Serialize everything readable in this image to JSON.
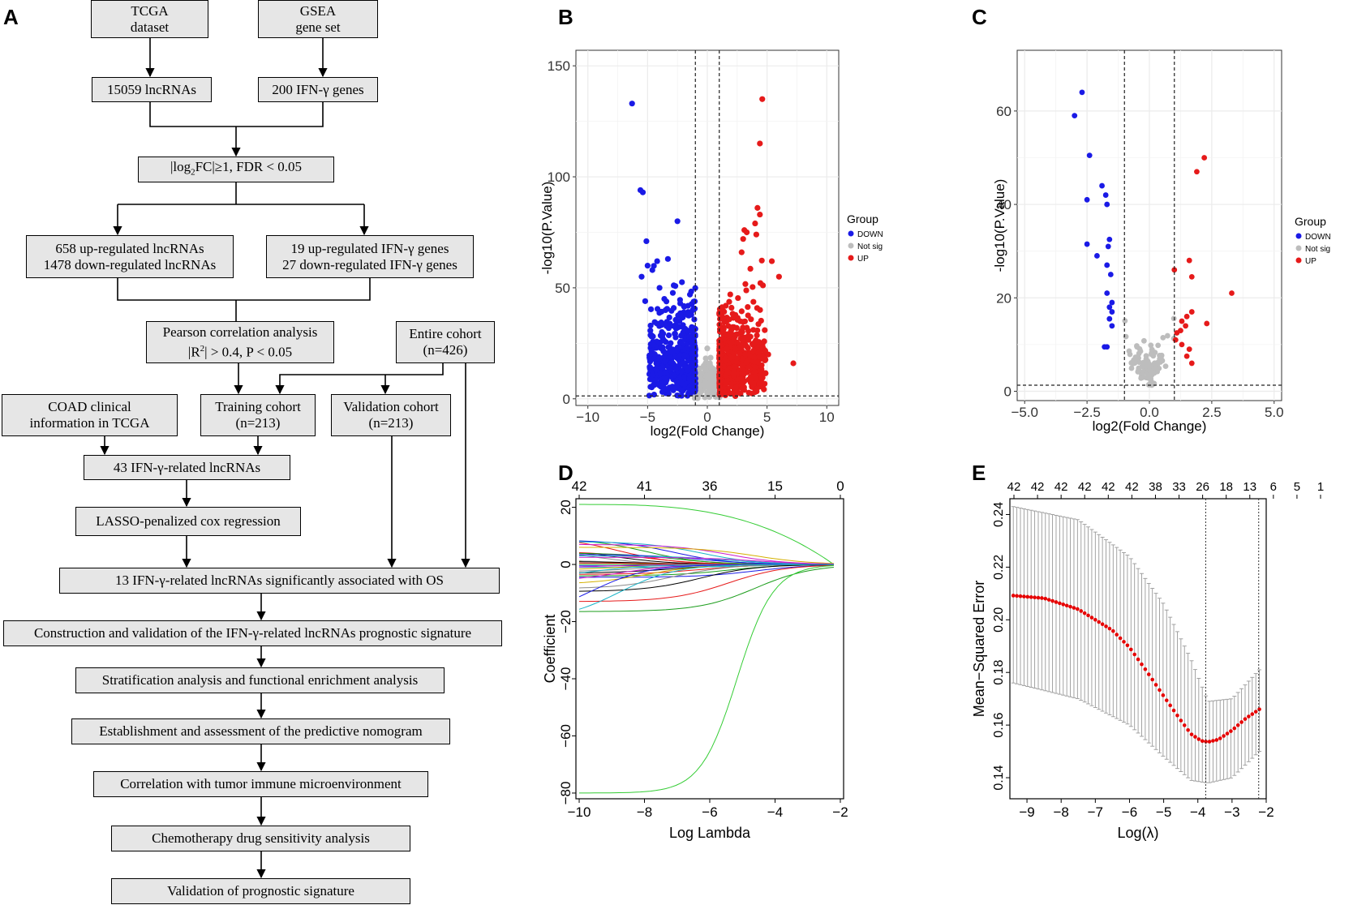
{
  "panels": {
    "A": "A",
    "B": "B",
    "C": "C",
    "D": "D",
    "E": "E"
  },
  "flowchart": {
    "tcga": [
      "TCGA",
      "dataset"
    ],
    "gsea": [
      "GSEA",
      "gene set"
    ],
    "lnc": "15059 lncRNAs",
    "ifn": "200 IFN-γ genes",
    "filter": {
      "pre": "|log",
      "sub": "2",
      "post": "FC|≥1, FDR < 0.05"
    },
    "deg_lnc": [
      "658 up-regulated lncRNAs",
      "1478 down-regulated lncRNAs"
    ],
    "deg_ifn": [
      "19 up-regulated IFN-γ genes",
      "27 down-regulated IFN-γ genes"
    ],
    "pearson": {
      "line1": "Pearson correlation analysis",
      "pre": "|R",
      "sup": "2",
      "post": "| > 0.4, P < 0.05"
    },
    "entire": [
      "Entire cohort",
      "(n=426)"
    ],
    "coad": [
      "COAD clinical",
      "information in TCGA"
    ],
    "training": [
      "Training cohort",
      "(n=213)"
    ],
    "validation": [
      "Validation cohort",
      "(n=213)"
    ],
    "s43": "43 IFN-γ-related lncRNAs",
    "lasso": "LASSO-penalized cox regression",
    "s13": "13 IFN-γ-related lncRNAs significantly associated with OS",
    "construct": "Construction and validation of the IFN-γ-related lncRNAs prognostic signature",
    "strat": "Stratification analysis and functional enrichment analysis",
    "nomo": "Establishment and assessment of the predictive nomogram",
    "immune": "Correlation with tumor immune microenvironment",
    "chemo": "Chemotherapy drug sensitivity analysis",
    "valid": "Validation of prognostic signature"
  },
  "colors": {
    "down": "#1a1ae6",
    "notsig": "#bdbdbd",
    "up": "#e61a1a",
    "box": "#e6e6e6",
    "grid": "#ebebeb"
  },
  "chart_data": [
    {
      "id": "B",
      "type": "scatter",
      "title": "",
      "xlabel": "log2(Fold Change)",
      "ylabel": "-log10(P.Value)",
      "xlim": [
        -11,
        11
      ],
      "ylim": [
        -3,
        157
      ],
      "xticks": [
        -10,
        -5,
        0,
        5,
        10
      ],
      "yticks": [
        0,
        50,
        100,
        150
      ],
      "thresholds": {
        "x": [
          -1,
          1
        ],
        "y": 1.3
      },
      "legend": {
        "title": "Group",
        "entries": [
          "DOWN",
          "Not sig",
          "UP"
        ],
        "position": "right"
      },
      "labeled_points": {
        "down": [
          [
            -6.3,
            133
          ],
          [
            -5.6,
            94
          ],
          [
            -5.4,
            93
          ],
          [
            -5.1,
            71
          ],
          [
            -2.5,
            80
          ],
          [
            -5.5,
            55
          ],
          [
            -5.0,
            60
          ],
          [
            -4.6,
            58
          ],
          [
            -4.2,
            62
          ],
          [
            -3.3,
            63
          ],
          [
            -4.0,
            50
          ],
          [
            -3.6,
            45
          ],
          [
            -5.2,
            44
          ]
        ],
        "up": [
          [
            4.6,
            135
          ],
          [
            4.4,
            115
          ],
          [
            4.2,
            86
          ],
          [
            4.4,
            83
          ],
          [
            4.0,
            79
          ],
          [
            3.1,
            76
          ],
          [
            3.3,
            75
          ],
          [
            4.1,
            74
          ],
          [
            3.0,
            72
          ],
          [
            5.4,
            62
          ],
          [
            6.0,
            55
          ],
          [
            7.2,
            16
          ],
          [
            5.1,
            20
          ]
        ]
      }
    },
    {
      "id": "C",
      "type": "scatter",
      "title": "",
      "xlabel": "log2(Fold Change)",
      "ylabel": "-log10(P.Value)",
      "xlim": [
        -5.3,
        5.3
      ],
      "ylim": [
        -2,
        73
      ],
      "xticks": [
        -5.0,
        -2.5,
        0.0,
        2.5,
        5.0
      ],
      "yticks": [
        0,
        20,
        40,
        60
      ],
      "thresholds": {
        "x": [
          -1,
          1
        ],
        "y": 1.3
      },
      "legend": {
        "title": "Group",
        "entries": [
          "DOWN",
          "Not sig",
          "UP"
        ],
        "position": "right"
      },
      "points": {
        "down": [
          [
            -2.7,
            64
          ],
          [
            -3.0,
            59
          ],
          [
            -2.4,
            50.5
          ],
          [
            -1.9,
            44
          ],
          [
            -1.75,
            42
          ],
          [
            -2.5,
            41
          ],
          [
            -1.7,
            40
          ],
          [
            -1.6,
            32.5
          ],
          [
            -1.65,
            31
          ],
          [
            -2.5,
            31.5
          ],
          [
            -2.1,
            29
          ],
          [
            -1.7,
            27
          ],
          [
            -1.55,
            25
          ],
          [
            -1.7,
            21
          ],
          [
            -1.5,
            19
          ],
          [
            -1.6,
            18
          ],
          [
            -1.5,
            17
          ],
          [
            -1.6,
            15.5
          ],
          [
            -1.5,
            14
          ],
          [
            -1.7,
            9.5
          ],
          [
            -1.8,
            9.5
          ]
        ],
        "up": [
          [
            2.2,
            50
          ],
          [
            1.9,
            47
          ],
          [
            3.3,
            21
          ],
          [
            1.6,
            28
          ],
          [
            1.7,
            24.5
          ],
          [
            1.0,
            26
          ],
          [
            1.5,
            16
          ],
          [
            1.7,
            17
          ],
          [
            2.3,
            14.5
          ],
          [
            1.3,
            15
          ],
          [
            1.45,
            14
          ],
          [
            1.25,
            13
          ],
          [
            1.1,
            12.5
          ],
          [
            1.05,
            11
          ],
          [
            1.3,
            10
          ],
          [
            1.6,
            9
          ],
          [
            1.5,
            7.5
          ],
          [
            1.7,
            6
          ]
        ]
      }
    },
    {
      "id": "D",
      "type": "line",
      "title": "",
      "xlabel": "Log Lambda",
      "ylabel": "Coefficient",
      "xlim": [
        -10.1,
        -1.9
      ],
      "ylim": [
        -82,
        23
      ],
      "xticks": [
        -10,
        -8,
        -6,
        -4,
        -2
      ],
      "yticks": [
        -80,
        -60,
        -40,
        -20,
        0,
        20
      ],
      "top_axis": {
        "labels": [
          "42",
          "41",
          "36",
          "15",
          "0"
        ],
        "at": [
          -10,
          -8,
          -6,
          -4,
          -2
        ]
      },
      "series_endpoints_at_x_min": [
        21,
        9.5,
        9,
        8.5,
        8,
        7,
        6,
        5.5,
        5,
        4.5,
        4,
        3.5,
        3,
        2.5,
        2,
        1.5,
        1,
        0.5,
        0,
        -0.5,
        -1,
        -1.5,
        -2,
        -2.5,
        -3,
        -3.5,
        -4,
        -4.5,
        -5,
        -6,
        -7,
        -8.5,
        -9.5,
        -13,
        -16.5,
        -18.5,
        -19.5,
        -80
      ]
    },
    {
      "id": "E",
      "type": "line",
      "title": "",
      "xlabel": "Log(λ)",
      "ylabel": "Mean−Squared Error",
      "xlim": [
        -9.5,
        -2.0
      ],
      "ylim": [
        0.132,
        0.246
      ],
      "xticks": [
        -9,
        -8,
        -7,
        -6,
        -5,
        -4,
        -3,
        -2
      ],
      "yticks": [
        0.14,
        0.16,
        0.18,
        0.2,
        0.22,
        0.24
      ],
      "top_axis": {
        "labels": [
          "42",
          "42",
          "42",
          "42",
          "42",
          "42",
          "38",
          "33",
          "26",
          "18",
          "13",
          "6",
          "5",
          "1"
        ]
      },
      "vlines": [
        -3.77,
        -2.22
      ],
      "x_range": [
        -9.4,
        -2.2
      ],
      "mse_knots": {
        "x": [
          -9.4,
          -8.5,
          -7.5,
          -6.5,
          -6.0,
          -5.5,
          -5.0,
          -4.5,
          -4.2,
          -3.9,
          -3.7,
          -3.4,
          -3.0,
          -2.6,
          -2.2
        ],
        "y": [
          0.2092,
          0.2082,
          0.204,
          0.196,
          0.1895,
          0.1805,
          0.171,
          0.1618,
          0.1566,
          0.154,
          0.1536,
          0.1545,
          0.158,
          0.1625,
          0.166
        ]
      },
      "upper_knots": {
        "x": [
          -9.4,
          -7.5,
          -6,
          -5,
          -4.2,
          -3.7,
          -3,
          -2.2
        ],
        "y": [
          0.243,
          0.238,
          0.224,
          0.206,
          0.185,
          0.169,
          0.17,
          0.181
        ]
      },
      "lower_knots": {
        "x": [
          -9.4,
          -7.5,
          -6,
          -5,
          -4.2,
          -3.7,
          -3,
          -2.2
        ],
        "y": [
          0.176,
          0.17,
          0.16,
          0.148,
          0.139,
          0.138,
          0.14,
          0.15
        ]
      }
    }
  ]
}
